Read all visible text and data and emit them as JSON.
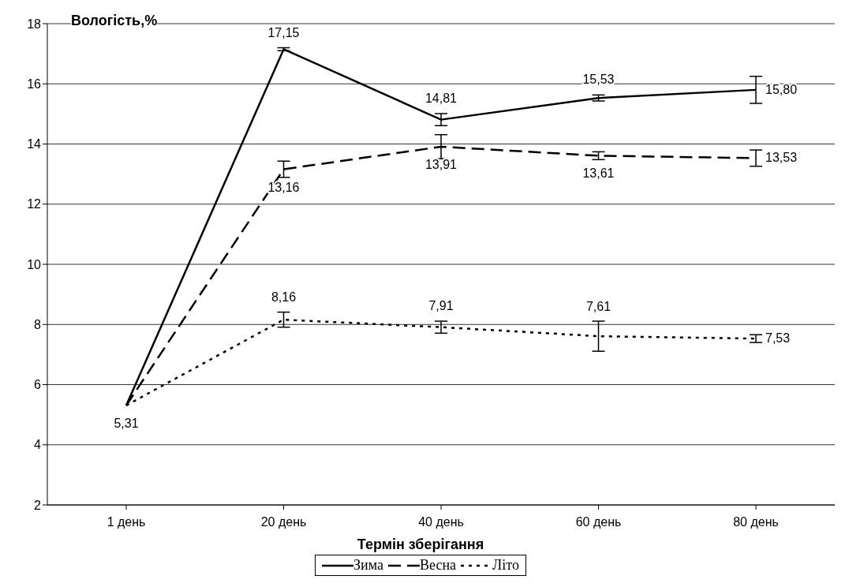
{
  "chart_data": {
    "type": "line",
    "ylabel": "Вологість,%",
    "xlabel": "Термін зберігання",
    "categories": [
      "1 день",
      "20 день",
      "40 день",
      "60 день",
      "80 день"
    ],
    "series": [
      {
        "name": "Зима",
        "color": "#000000",
        "line_style": "solid",
        "values": [
          5.31,
          17.15,
          14.81,
          15.53,
          15.8
        ],
        "errors": [
          null,
          0.05,
          0.2,
          0.1,
          0.45
        ],
        "value_labels": [
          null,
          "17,15",
          "14,81",
          "15,53",
          "15,80"
        ]
      },
      {
        "name": "Весна",
        "color": "#000000",
        "line_style": "dashed",
        "values": [
          5.31,
          13.16,
          13.91,
          13.61,
          13.53
        ],
        "errors": [
          null,
          0.27,
          0.4,
          0.13,
          0.27
        ],
        "value_labels": [
          null,
          "13,16",
          "13,91",
          "13,61",
          "13,53"
        ]
      },
      {
        "name": "Літо",
        "color": "#000000",
        "line_style": "dotted",
        "values": [
          5.31,
          8.16,
          7.91,
          7.61,
          7.53
        ],
        "errors": [
          null,
          0.25,
          0.2,
          0.5,
          0.13
        ],
        "value_labels": [
          "5,31",
          "8,16",
          "7,91",
          "7,61",
          "7,53"
        ]
      }
    ],
    "ylim": [
      2,
      18
    ],
    "yticks": [
      2,
      4,
      6,
      8,
      10,
      12,
      14,
      16,
      18
    ],
    "grid": "y",
    "legend": "bottom",
    "marker": "none"
  }
}
